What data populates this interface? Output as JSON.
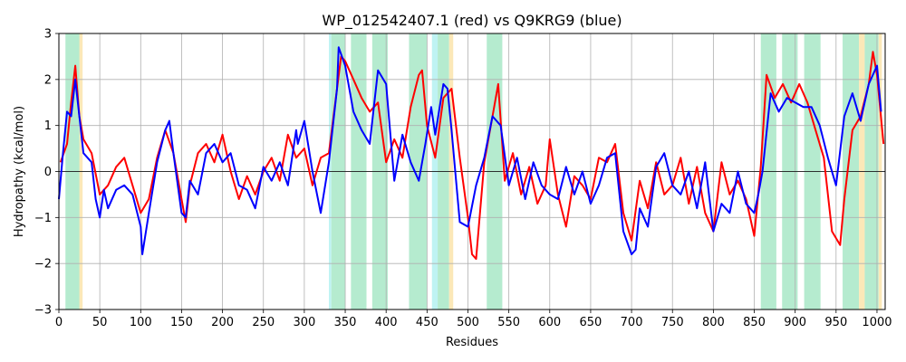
{
  "chart_data": {
    "type": "line",
    "title": "WP_012542407.1 (red) vs Q9KRG9 (blue)",
    "xlabel": "Residues",
    "ylabel": "Hydropathy (kcal/mol)",
    "xlim": [
      0,
      1010
    ],
    "ylim": [
      -3,
      3
    ],
    "xticks": [
      0,
      50,
      100,
      150,
      200,
      250,
      300,
      350,
      400,
      450,
      500,
      550,
      600,
      650,
      700,
      750,
      800,
      850,
      900,
      950,
      1000
    ],
    "yticks": [
      -3,
      -2,
      -1,
      0,
      1,
      2,
      3
    ],
    "grid": true,
    "zero_line": true,
    "shaded_regions": [
      {
        "start": 8,
        "end": 28,
        "color": "#b5ebcf"
      },
      {
        "start": 25,
        "end": 29,
        "color": "#fbe8b8"
      },
      {
        "start": 330,
        "end": 333,
        "color": "#bff3f3"
      },
      {
        "start": 333,
        "end": 350,
        "color": "#b5ebcf"
      },
      {
        "start": 357,
        "end": 376,
        "color": "#b5ebcf"
      },
      {
        "start": 383,
        "end": 402,
        "color": "#b5ebcf"
      },
      {
        "start": 428,
        "end": 450,
        "color": "#b5ebcf"
      },
      {
        "start": 456,
        "end": 463,
        "color": "#bff3f3"
      },
      {
        "start": 463,
        "end": 477,
        "color": "#b5ebcf"
      },
      {
        "start": 477,
        "end": 482,
        "color": "#fbe8b8"
      },
      {
        "start": 523,
        "end": 542,
        "color": "#b5ebcf"
      },
      {
        "start": 858,
        "end": 877,
        "color": "#b5ebcf"
      },
      {
        "start": 884,
        "end": 903,
        "color": "#b5ebcf"
      },
      {
        "start": 911,
        "end": 931,
        "color": "#b5ebcf"
      },
      {
        "start": 958,
        "end": 978,
        "color": "#b5ebcf"
      },
      {
        "start": 978,
        "end": 985,
        "color": "#fbe8b8"
      },
      {
        "start": 985,
        "end": 1002,
        "color": "#b5ebcf"
      },
      {
        "start": 1002,
        "end": 1006,
        "color": "#fbe8b8"
      }
    ],
    "series": [
      {
        "color": "#ff0000",
        "x": [
          2,
          10,
          15,
          20,
          25,
          30,
          40,
          50,
          60,
          70,
          80,
          90,
          100,
          110,
          120,
          130,
          140,
          150,
          155,
          160,
          170,
          180,
          190,
          200,
          210,
          220,
          230,
          240,
          250,
          260,
          270,
          280,
          290,
          300,
          310,
          320,
          330,
          340,
          345,
          350,
          360,
          370,
          380,
          390,
          400,
          410,
          420,
          430,
          440,
          444,
          450,
          460,
          470,
          480,
          490,
          500,
          505,
          510,
          520,
          530,
          537,
          545,
          555,
          565,
          575,
          585,
          595,
          600,
          610,
          620,
          630,
          640,
          650,
          660,
          670,
          680,
          690,
          700,
          710,
          720,
          730,
          740,
          750,
          760,
          770,
          780,
          790,
          800,
          810,
          820,
          830,
          840,
          850,
          858,
          865,
          875,
          885,
          895,
          905,
          915,
          925,
          935,
          945,
          955,
          960,
          970,
          980,
          990,
          995,
          1000,
          1008
        ],
        "y": [
          0.2,
          0.6,
          1.5,
          2.3,
          1.2,
          0.7,
          0.4,
          -0.5,
          -0.3,
          0.1,
          0.3,
          -0.3,
          -0.9,
          -0.6,
          0.3,
          0.9,
          0.4,
          -0.6,
          -1.1,
          -0.3,
          0.4,
          0.6,
          0.2,
          0.8,
          0.0,
          -0.6,
          -0.1,
          -0.5,
          0.0,
          0.3,
          -0.2,
          0.8,
          0.3,
          0.5,
          -0.3,
          0.3,
          0.4,
          1.8,
          2.5,
          2.4,
          2.0,
          1.6,
          1.3,
          1.5,
          0.2,
          0.7,
          0.3,
          1.4,
          2.1,
          2.2,
          1.0,
          0.3,
          1.6,
          1.8,
          0.3,
          -1.0,
          -1.8,
          -1.9,
          0.2,
          1.2,
          1.9,
          -0.2,
          0.4,
          -0.5,
          0.1,
          -0.7,
          -0.3,
          0.7,
          -0.5,
          -1.2,
          -0.1,
          -0.3,
          -0.6,
          0.3,
          0.2,
          0.6,
          -0.9,
          -1.5,
          -0.2,
          -0.8,
          0.2,
          -0.5,
          -0.3,
          0.3,
          -0.7,
          0.1,
          -0.9,
          -1.3,
          0.2,
          -0.5,
          -0.2,
          -0.6,
          -1.4,
          0.1,
          2.1,
          1.6,
          1.9,
          1.5,
          1.9,
          1.5,
          0.9,
          0.3,
          -1.3,
          -1.6,
          -0.6,
          0.9,
          1.2,
          1.9,
          2.6,
          2.1,
          0.6
        ]
      },
      {
        "color": "#0000ff",
        "x": [
          0,
          5,
          10,
          15,
          20,
          25,
          30,
          40,
          45,
          50,
          55,
          60,
          70,
          80,
          90,
          100,
          102,
          110,
          120,
          130,
          135,
          140,
          150,
          155,
          160,
          170,
          180,
          190,
          200,
          210,
          220,
          230,
          240,
          250,
          260,
          270,
          280,
          290,
          292,
          300,
          310,
          320,
          330,
          340,
          342,
          350,
          360,
          370,
          380,
          390,
          400,
          410,
          420,
          430,
          440,
          448,
          455,
          460,
          470,
          475,
          480,
          490,
          500,
          510,
          520,
          530,
          540,
          550,
          560,
          570,
          580,
          590,
          600,
          610,
          620,
          630,
          640,
          650,
          660,
          670,
          680,
          690,
          700,
          705,
          710,
          720,
          730,
          740,
          750,
          760,
          770,
          780,
          790,
          800,
          810,
          820,
          830,
          840,
          850,
          855,
          860,
          870,
          880,
          890,
          900,
          910,
          920,
          930,
          940,
          950,
          960,
          970,
          980,
          990,
          1000,
          1005
        ],
        "y": [
          -0.6,
          0.4,
          1.3,
          1.2,
          2.0,
          1.2,
          0.4,
          0.2,
          -0.6,
          -1.0,
          -0.4,
          -0.8,
          -0.4,
          -0.3,
          -0.5,
          -1.2,
          -1.8,
          -0.9,
          0.2,
          0.9,
          1.1,
          0.4,
          -0.9,
          -1.0,
          -0.2,
          -0.5,
          0.4,
          0.6,
          0.2,
          0.4,
          -0.3,
          -0.4,
          -0.8,
          0.1,
          -0.2,
          0.2,
          -0.3,
          0.9,
          0.6,
          1.1,
          0.0,
          -0.9,
          0.2,
          1.8,
          2.7,
          2.3,
          1.3,
          0.9,
          0.6,
          2.2,
          1.9,
          -0.2,
          0.8,
          0.2,
          -0.2,
          0.6,
          1.4,
          0.8,
          1.9,
          1.8,
          0.9,
          -1.1,
          -1.2,
          -0.3,
          0.3,
          1.2,
          1.0,
          -0.3,
          0.3,
          -0.6,
          0.2,
          -0.3,
          -0.5,
          -0.6,
          0.1,
          -0.5,
          0.0,
          -0.7,
          -0.3,
          0.3,
          0.4,
          -1.3,
          -1.8,
          -1.7,
          -0.8,
          -1.2,
          0.1,
          0.4,
          -0.3,
          -0.5,
          0.0,
          -0.8,
          0.2,
          -1.3,
          -0.7,
          -0.9,
          0.0,
          -0.7,
          -0.9,
          -0.5,
          0.0,
          1.7,
          1.3,
          1.6,
          1.5,
          1.4,
          1.4,
          1.0,
          0.3,
          -0.3,
          1.2,
          1.7,
          1.1,
          1.9,
          2.3,
          1.3
        ]
      }
    ]
  }
}
